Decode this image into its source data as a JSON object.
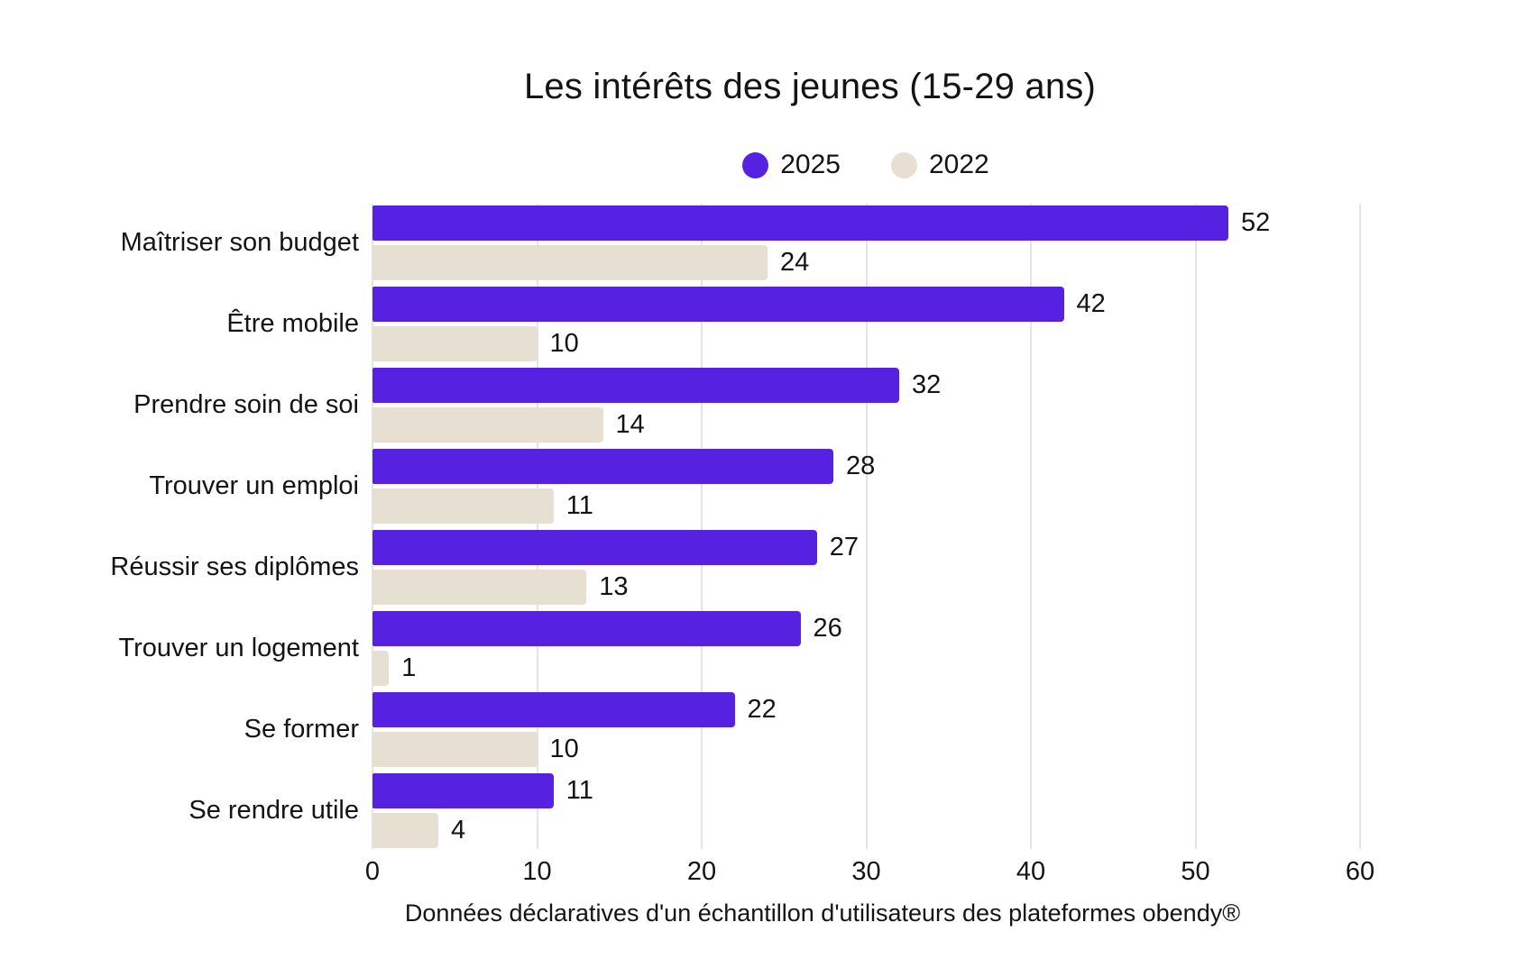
{
  "header": {
    "title": "Les intérêts des jeunes (15-29 ans)"
  },
  "legend": {
    "items": [
      {
        "label": "2025",
        "color": "#5621e1"
      },
      {
        "label": "2022",
        "color": "#e6dfd2"
      }
    ]
  },
  "chart_data": {
    "type": "bar",
    "orientation": "horizontal",
    "title": "Les intérêts des jeunes (15-29 ans)",
    "categories": [
      "Maîtriser son budget",
      "Être mobile",
      "Prendre soin de soi",
      "Trouver un emploi",
      "Réussir ses diplômes",
      "Trouver un logement",
      "Se former",
      "Se rendre utile"
    ],
    "series": [
      {
        "name": "2025",
        "color": "#5621e1",
        "values": [
          52,
          42,
          32,
          28,
          27,
          26,
          22,
          11
        ]
      },
      {
        "name": "2022",
        "color": "#e6dfd2",
        "values": [
          24,
          10,
          14,
          11,
          13,
          1,
          10,
          4
        ]
      }
    ],
    "x_ticks": [
      0,
      10,
      20,
      30,
      40,
      50,
      60
    ],
    "xlim": [
      0,
      68
    ],
    "grid": true,
    "legend_position": "top",
    "value_labels": true,
    "xlabel": "",
    "ylabel": "",
    "caption": "Données déclaratives d'un échantillon d'utilisateurs des plateformes obendy®"
  },
  "colors": {
    "text": "#141414",
    "grid": "#e4e4e4",
    "background": "#ffffff"
  }
}
